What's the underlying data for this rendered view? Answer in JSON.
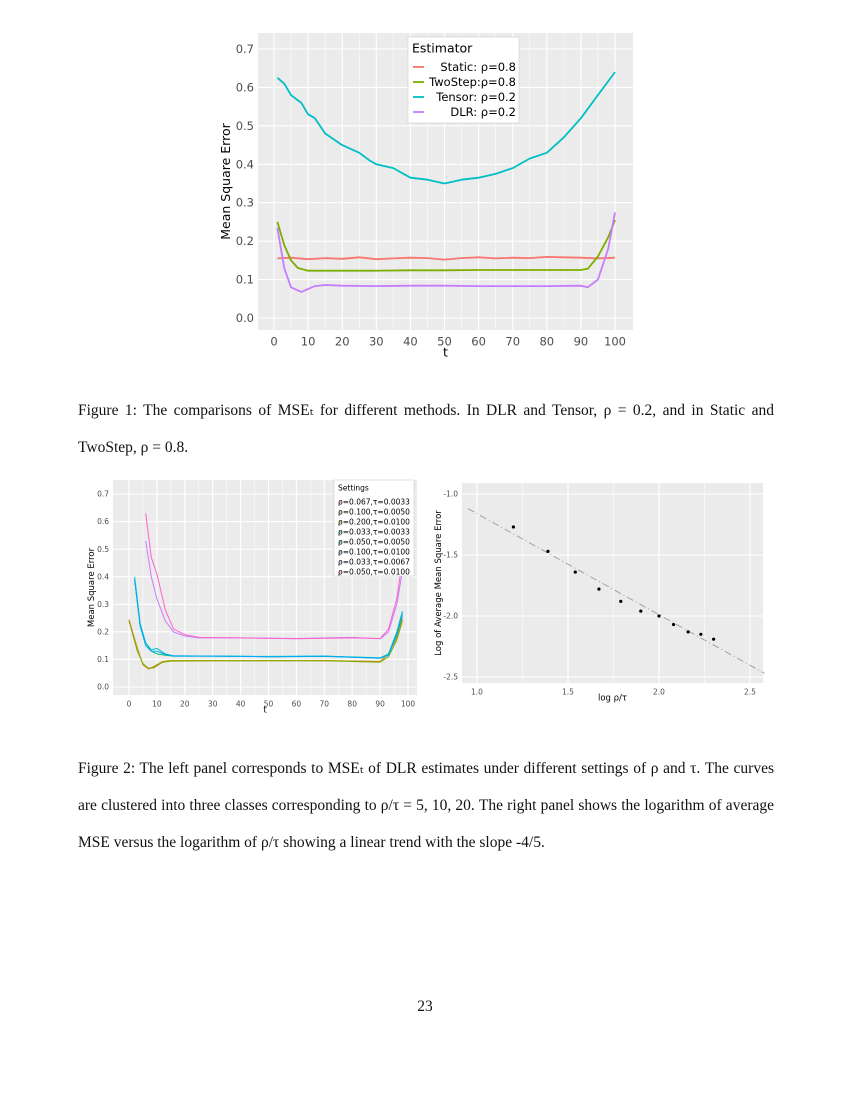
{
  "chart_data": [
    {
      "type": "line",
      "xlabel": "t",
      "ylabel": "Mean Square Error",
      "xlim": [
        0,
        100
      ],
      "ylim": [
        0,
        0.7
      ],
      "xticks": [
        0,
        10,
        20,
        30,
        40,
        50,
        60,
        70,
        80,
        90,
        100
      ],
      "yticks": [
        0.0,
        0.1,
        0.2,
        0.3,
        0.4,
        0.5,
        0.6,
        0.7
      ],
      "ytick_labels": [
        "0.0",
        "0.1",
        "0.2",
        "0.3",
        "0.4",
        "0.5",
        "0.6",
        "0.7"
      ],
      "grid": true,
      "legend": {
        "title": "Estimator",
        "placement": "top-center"
      },
      "series": [
        {
          "name": "Static: ρ=0.8",
          "color": "#F8766D",
          "x": [
            1,
            5,
            10,
            15,
            20,
            25,
            30,
            35,
            40,
            45,
            50,
            55,
            60,
            65,
            70,
            75,
            80,
            85,
            90,
            95,
            100
          ],
          "y": [
            0.155,
            0.157,
            0.153,
            0.156,
            0.154,
            0.158,
            0.153,
            0.155,
            0.157,
            0.156,
            0.152,
            0.156,
            0.158,
            0.155,
            0.157,
            0.156,
            0.159,
            0.158,
            0.157,
            0.155,
            0.157
          ]
        },
        {
          "name": "TwoStep:ρ=0.8",
          "color": "#7CAE00",
          "x": [
            1,
            3,
            5,
            7,
            10,
            20,
            30,
            40,
            50,
            60,
            70,
            80,
            90,
            92,
            95,
            98,
            100
          ],
          "y": [
            0.25,
            0.19,
            0.15,
            0.13,
            0.123,
            0.123,
            0.123,
            0.124,
            0.124,
            0.125,
            0.125,
            0.125,
            0.125,
            0.128,
            0.16,
            0.21,
            0.255
          ]
        },
        {
          "name": "Tensor: ρ=0.2",
          "color": "#00BFC4",
          "x": [
            1,
            3,
            5,
            8,
            10,
            12,
            15,
            20,
            25,
            28,
            30,
            35,
            40,
            45,
            50,
            55,
            60,
            65,
            70,
            75,
            80,
            85,
            90,
            95,
            100
          ],
          "y": [
            0.625,
            0.61,
            0.58,
            0.56,
            0.53,
            0.52,
            0.48,
            0.45,
            0.43,
            0.41,
            0.4,
            0.39,
            0.365,
            0.36,
            0.35,
            0.36,
            0.365,
            0.375,
            0.39,
            0.415,
            0.43,
            0.47,
            0.52,
            0.58,
            0.64
          ]
        },
        {
          "name": "DLR: ρ=0.2",
          "color": "#C77CFF",
          "x": [
            1,
            3,
            5,
            8,
            12,
            15,
            20,
            30,
            40,
            50,
            60,
            70,
            80,
            90,
            92,
            95,
            98,
            100
          ],
          "y": [
            0.235,
            0.13,
            0.08,
            0.068,
            0.083,
            0.086,
            0.084,
            0.083,
            0.084,
            0.084,
            0.083,
            0.083,
            0.083,
            0.084,
            0.08,
            0.1,
            0.18,
            0.275
          ]
        }
      ]
    },
    {
      "type": "line",
      "xlabel": "t",
      "ylabel": "Mean Square Error",
      "xlim": [
        0,
        100
      ],
      "ylim": [
        0,
        0.7
      ],
      "xticks": [
        0,
        10,
        20,
        30,
        40,
        50,
        60,
        70,
        80,
        90,
        100
      ],
      "yticks": [
        0.0,
        0.1,
        0.2,
        0.3,
        0.4,
        0.5,
        0.6,
        0.7
      ],
      "ytick_labels": [
        "0.0",
        "0.1",
        "0.2",
        "0.3",
        "0.4",
        "0.5",
        "0.6",
        "0.7"
      ],
      "grid": true,
      "legend": {
        "title": "Settings",
        "placement": "top-right"
      },
      "series": [
        {
          "name": "ρ=0.067,τ=0.0033",
          "color": "#F8766D",
          "x": [
            0,
            3,
            5,
            7,
            9,
            12,
            15,
            30,
            50,
            70,
            90,
            93,
            96,
            98
          ],
          "y": [
            0.245,
            0.14,
            0.08,
            0.067,
            0.07,
            0.09,
            0.095,
            0.095,
            0.096,
            0.095,
            0.093,
            0.12,
            0.18,
            0.25
          ]
        },
        {
          "name": "ρ=0.100,τ=0.0050",
          "color": "#CD9600",
          "x": [
            0,
            3,
            5,
            7,
            9,
            12,
            15,
            30,
            50,
            70,
            90,
            93,
            96,
            98
          ],
          "y": [
            0.24,
            0.14,
            0.08,
            0.065,
            0.075,
            0.092,
            0.096,
            0.096,
            0.095,
            0.096,
            0.092,
            0.12,
            0.18,
            0.245
          ]
        },
        {
          "name": "ρ=0.200,τ=0.0100",
          "color": "#7CAE00",
          "x": [
            0,
            3,
            5,
            7,
            9,
            12,
            15,
            30,
            50,
            70,
            90,
            93,
            96,
            98
          ],
          "y": [
            0.24,
            0.13,
            0.085,
            0.068,
            0.072,
            0.09,
            0.094,
            0.095,
            0.095,
            0.095,
            0.09,
            0.11,
            0.17,
            0.24
          ]
        },
        {
          "name": "ρ=0.033,τ=0.0033",
          "color": "#00BE67",
          "x": [
            2,
            4,
            6,
            8,
            10,
            13,
            16,
            30,
            50,
            70,
            90,
            93,
            96,
            98
          ],
          "y": [
            0.39,
            0.22,
            0.16,
            0.13,
            0.12,
            0.115,
            0.112,
            0.112,
            0.11,
            0.111,
            0.105,
            0.12,
            0.19,
            0.26
          ]
        },
        {
          "name": "ρ=0.050,τ=0.0050",
          "color": "#00BFC4",
          "x": [
            2,
            4,
            6,
            8,
            10,
            13,
            16,
            30,
            50,
            70,
            90,
            93,
            96,
            98
          ],
          "y": [
            0.4,
            0.23,
            0.16,
            0.135,
            0.14,
            0.12,
            0.113,
            0.112,
            0.111,
            0.112,
            0.106,
            0.12,
            0.2,
            0.275
          ]
        },
        {
          "name": "ρ=0.100,τ=0.0100",
          "color": "#00A9FF",
          "x": [
            2,
            4,
            6,
            8,
            10,
            13,
            16,
            30,
            50,
            70,
            90,
            93,
            96,
            98
          ],
          "y": [
            0.39,
            0.22,
            0.15,
            0.13,
            0.13,
            0.118,
            0.112,
            0.112,
            0.11,
            0.112,
            0.104,
            0.115,
            0.19,
            0.27
          ]
        },
        {
          "name": "ρ=0.033,τ=0.0067",
          "color": "#C77CFF",
          "x": [
            6,
            8,
            10,
            13,
            16,
            20,
            25,
            40,
            60,
            80,
            90,
            93,
            96,
            98
          ],
          "y": [
            0.53,
            0.4,
            0.32,
            0.24,
            0.2,
            0.185,
            0.178,
            0.178,
            0.176,
            0.18,
            0.175,
            0.2,
            0.3,
            0.42
          ]
        },
        {
          "name": "ρ=0.050,τ=0.0100",
          "color": "#FF61CC",
          "x": [
            6,
            8,
            10,
            13,
            16,
            20,
            25,
            40,
            60,
            80,
            90,
            93,
            96,
            98
          ],
          "y": [
            0.63,
            0.47,
            0.41,
            0.28,
            0.21,
            0.19,
            0.18,
            0.178,
            0.175,
            0.178,
            0.176,
            0.21,
            0.32,
            0.46
          ]
        }
      ]
    },
    {
      "type": "scatter",
      "xlabel": "log ρ/τ",
      "xlabel_parts": {
        "log": "log",
        "num": "ρ",
        "den": "τ"
      },
      "ylabel": "Log of Average Mean Square Error",
      "xlim": [
        0.95,
        2.58
      ],
      "ylim": [
        -2.57,
        -0.92
      ],
      "xticks": [
        1.0,
        1.5,
        2.0,
        2.5
      ],
      "xtick_labels": [
        "1.0",
        "1.5",
        "2.0",
        "2.5"
      ],
      "yticks": [
        -1.0,
        -1.5,
        -2.0,
        -2.5
      ],
      "ytick_labels": [
        "-1.0",
        "-1.5",
        "-2.0",
        "-2.5"
      ],
      "grid": true,
      "points": {
        "x": [
          1.2,
          1.39,
          1.54,
          1.67,
          1.79,
          1.9,
          2.0,
          2.08,
          2.16,
          2.23,
          2.3
        ],
        "y": [
          -1.27,
          -1.47,
          -1.64,
          -1.78,
          -1.88,
          -1.96,
          -2.0,
          -2.07,
          -2.13,
          -2.15,
          -2.19
        ]
      },
      "trend_line": {
        "x": [
          0.95,
          2.58
        ],
        "y": [
          -1.12,
          -2.47
        ],
        "style": "dashed",
        "color": "#9a9a9a"
      }
    }
  ],
  "captions": {
    "fig1": "Figure 1: The comparisons of MSEₜ for different methods. In DLR and Tensor, ρ = 0.2, and in Static and TwoStep, ρ = 0.8.",
    "fig2": "Figure 2: The left panel corresponds to MSEₜ of DLR estimates under different settings of ρ and τ. The curves are clustered into three classes corresponding to ρ/τ = 5, 10, 20. The right panel shows the logarithm of average MSE versus the logarithm of ρ/τ showing a linear trend with the slope -4/5."
  },
  "page_number": "23",
  "colors": {
    "panel_bg": "#EBEBEB",
    "grid": "#FFFFFF"
  }
}
